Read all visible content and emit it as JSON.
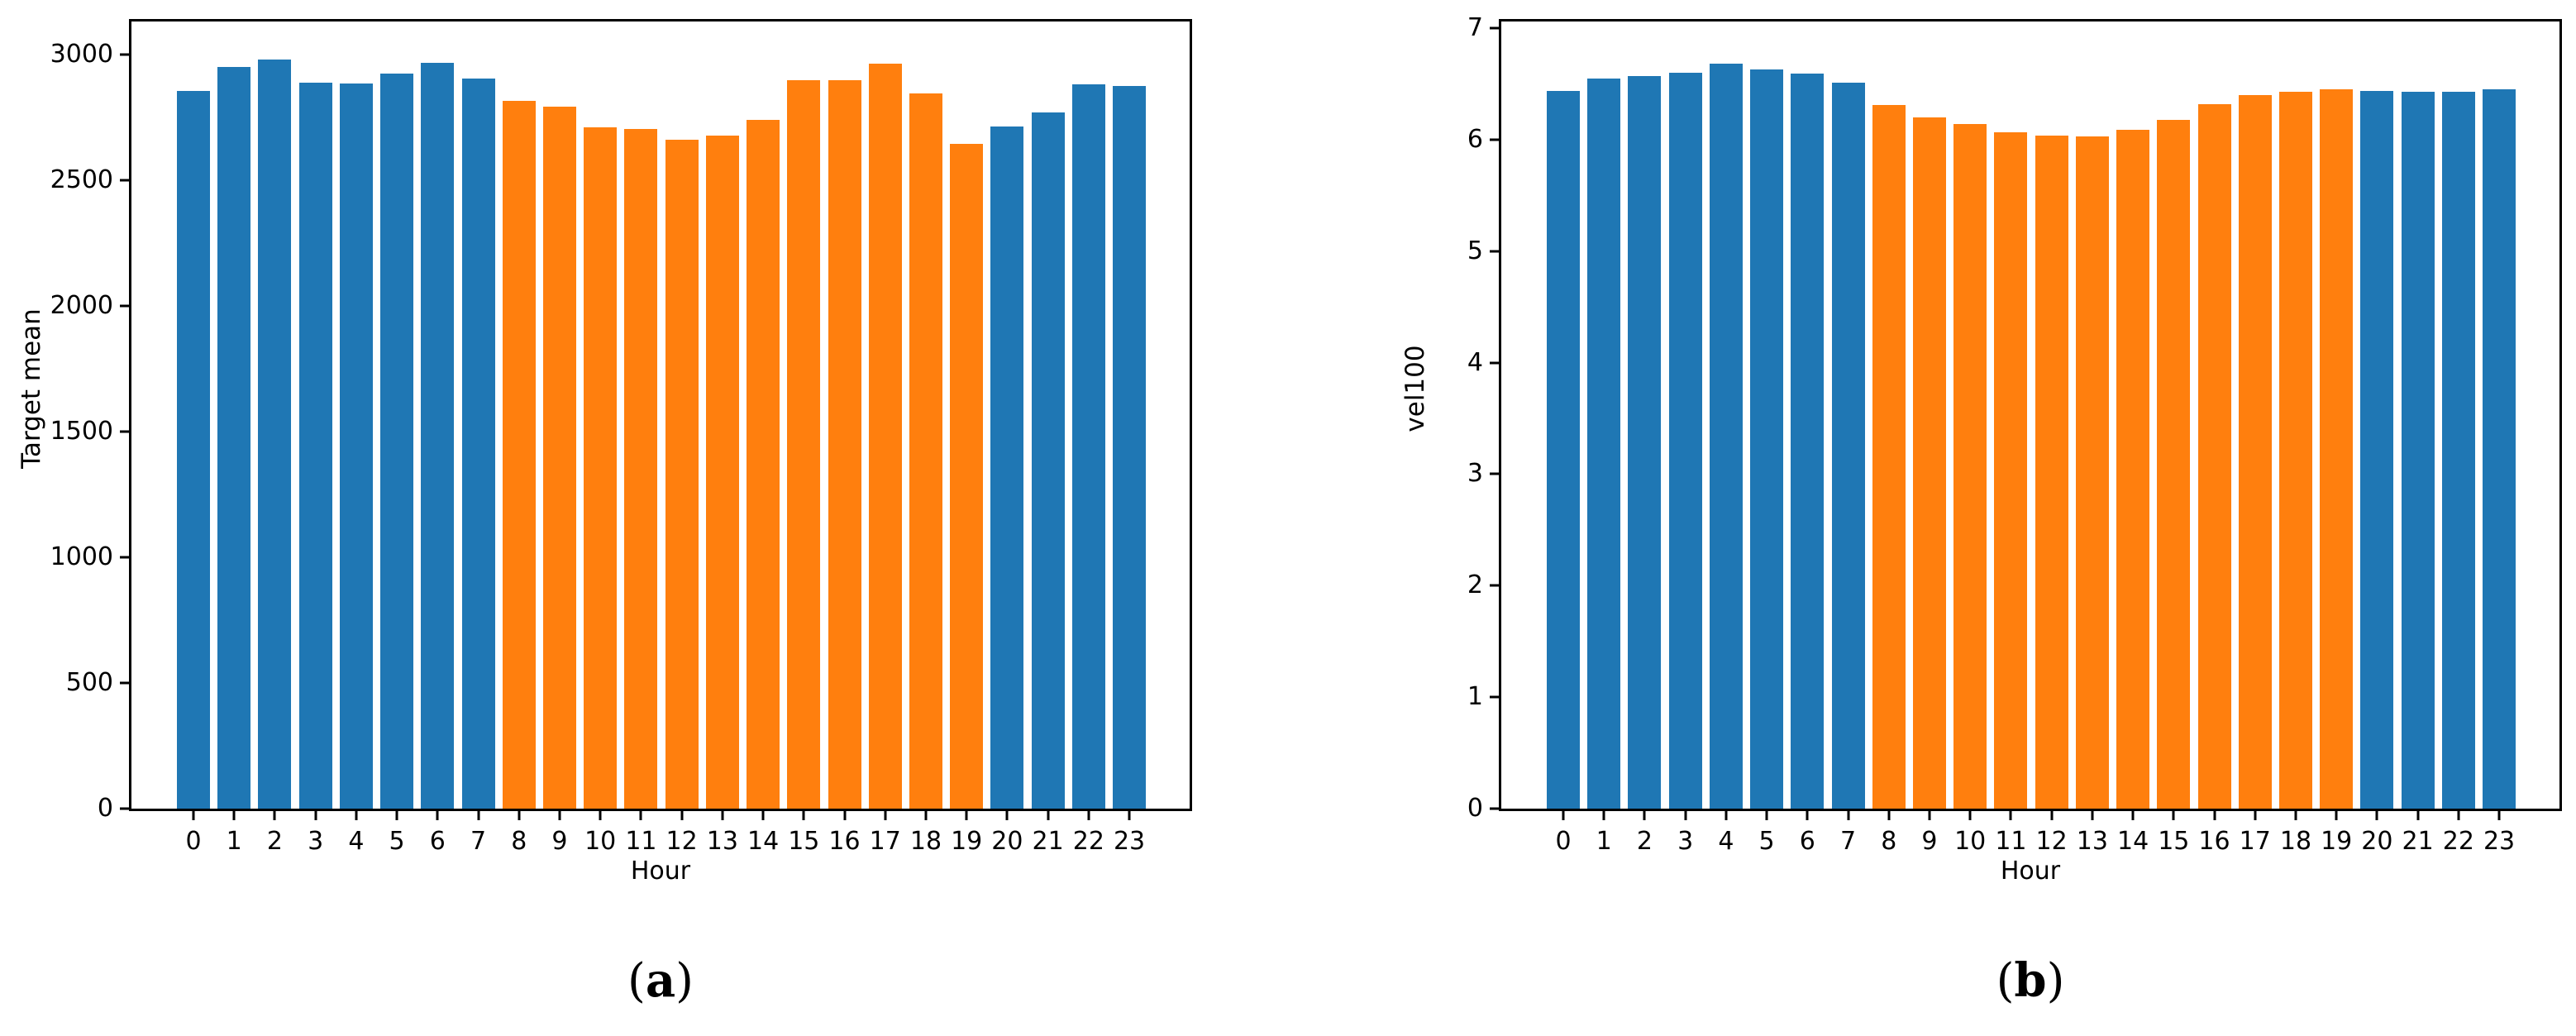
{
  "figure": {
    "background": "#ffffff",
    "captions": {
      "a_pre": "(",
      "a_label": "a",
      "a_post": ")",
      "b_pre": "(",
      "b_label": "b",
      "b_post": ")"
    }
  },
  "colors": {
    "blue": "#1f77b4",
    "orange": "#ff7f0e",
    "axis": "#000000"
  },
  "chart_data": [
    {
      "type": "bar",
      "panel": "a",
      "title": "",
      "xlabel": "Hour",
      "ylabel": "Target mean",
      "categories": [
        "0",
        "1",
        "2",
        "3",
        "4",
        "5",
        "6",
        "7",
        "8",
        "9",
        "10",
        "11",
        "12",
        "13",
        "14",
        "15",
        "16",
        "17",
        "18",
        "19",
        "20",
        "21",
        "22",
        "23"
      ],
      "values": [
        2853,
        2949,
        2980,
        2886,
        2884,
        2922,
        2967,
        2902,
        2815,
        2793,
        2708,
        2704,
        2661,
        2675,
        2739,
        2895,
        2897,
        2962,
        2844,
        2645,
        2712,
        2767,
        2880,
        2875
      ],
      "bar_colors": [
        "blue",
        "blue",
        "blue",
        "blue",
        "blue",
        "blue",
        "blue",
        "blue",
        "orange",
        "orange",
        "orange",
        "orange",
        "orange",
        "orange",
        "orange",
        "orange",
        "orange",
        "orange",
        "orange",
        "orange",
        "blue",
        "blue",
        "blue",
        "blue"
      ],
      "yticks": [
        0,
        500,
        1000,
        1500,
        2000,
        2500,
        3000
      ],
      "ylim": [
        0,
        3130
      ],
      "grid": false,
      "legend": null
    },
    {
      "type": "bar",
      "panel": "b",
      "title": "",
      "xlabel": "Hour",
      "ylabel": "vel100",
      "categories": [
        "0",
        "1",
        "2",
        "3",
        "4",
        "5",
        "6",
        "7",
        "8",
        "9",
        "10",
        "11",
        "12",
        "13",
        "14",
        "15",
        "16",
        "17",
        "18",
        "19",
        "20",
        "21",
        "22",
        "23"
      ],
      "values": [
        6.44,
        6.55,
        6.57,
        6.6,
        6.68,
        6.63,
        6.59,
        6.51,
        6.31,
        6.2,
        6.14,
        6.07,
        6.04,
        6.03,
        6.09,
        6.18,
        6.32,
        6.4,
        6.43,
        6.45,
        6.44,
        6.43,
        6.43,
        6.45
      ],
      "bar_colors": [
        "blue",
        "blue",
        "blue",
        "blue",
        "blue",
        "blue",
        "blue",
        "blue",
        "orange",
        "orange",
        "orange",
        "orange",
        "orange",
        "orange",
        "orange",
        "orange",
        "orange",
        "orange",
        "orange",
        "orange",
        "blue",
        "blue",
        "blue",
        "blue"
      ],
      "yticks": [
        0,
        1,
        2,
        3,
        4,
        5,
        6,
        7
      ],
      "ylim": [
        0,
        7.06
      ],
      "grid": false,
      "legend": null
    }
  ]
}
